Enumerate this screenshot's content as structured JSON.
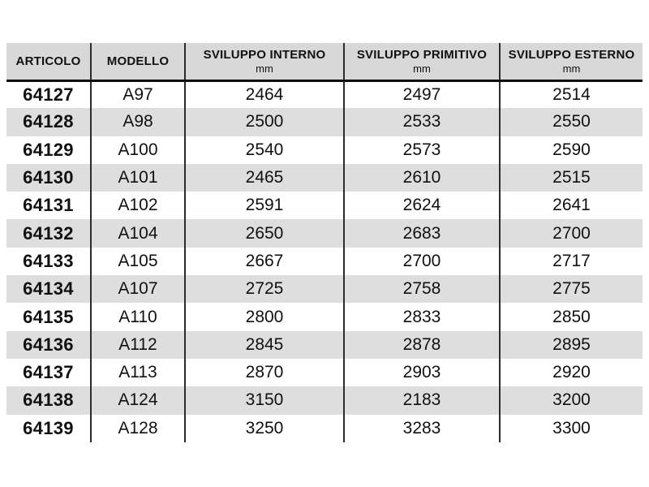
{
  "table": {
    "columns": [
      {
        "label": "ARTICOLO",
        "sub": ""
      },
      {
        "label": "MODELLO",
        "sub": ""
      },
      {
        "label": "SVILUPPO INTERNO",
        "sub": "mm"
      },
      {
        "label": "SVILUPPO PRIMITIVO",
        "sub": "mm"
      },
      {
        "label": "SVILUPPO ESTERNO",
        "sub": "mm"
      }
    ],
    "rows": [
      [
        "64127",
        "A97",
        "2464",
        "2497",
        "2514"
      ],
      [
        "64128",
        "A98",
        "2500",
        "2533",
        "2550"
      ],
      [
        "64129",
        "A100",
        "2540",
        "2573",
        "2590"
      ],
      [
        "64130",
        "A101",
        "2465",
        "2610",
        "2515"
      ],
      [
        "64131",
        "A102",
        "2591",
        "2624",
        "2641"
      ],
      [
        "64132",
        "A104",
        "2650",
        "2683",
        "2700"
      ],
      [
        "64133",
        "A105",
        "2667",
        "2700",
        "2717"
      ],
      [
        "64134",
        "A107",
        "2725",
        "2758",
        "2775"
      ],
      [
        "64135",
        "A110",
        "2800",
        "2833",
        "2850"
      ],
      [
        "64136",
        "A112",
        "2845",
        "2878",
        "2895"
      ],
      [
        "64137",
        "A113",
        "2870",
        "2903",
        "2920"
      ],
      [
        "64138",
        "A124",
        "3150",
        "2183",
        "3200"
      ],
      [
        "64139",
        "A128",
        "3250",
        "3283",
        "3300"
      ]
    ]
  },
  "colors": {
    "header_bg": "#d8d8d8",
    "row_alt_bg": "#dedede",
    "border": "#2b2b2b",
    "text": "#111111"
  }
}
